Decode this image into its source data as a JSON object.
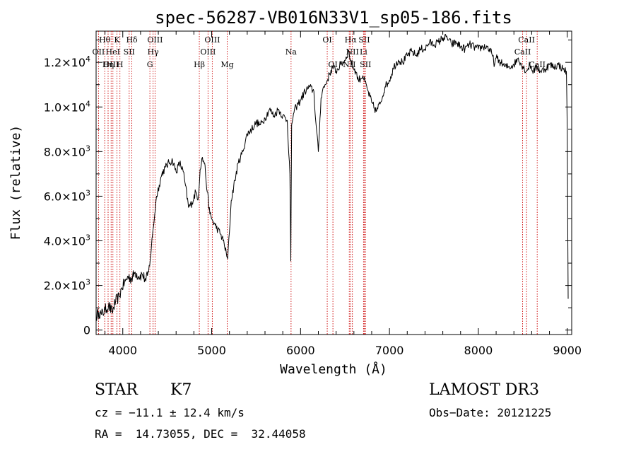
{
  "chart_data": {
    "type": "line",
    "title": "spec-56287-VB016N33V1_sp05-186.fits",
    "xlabel": "Wavelength (Å)",
    "ylabel": "Flux (relative)",
    "xlim": [
      3700,
      9050
    ],
    "ylim": [
      -200,
      13400
    ],
    "xticks": [
      {
        "value": 4000,
        "label": "4000"
      },
      {
        "value": 5000,
        "label": "5000"
      },
      {
        "value": 6000,
        "label": "6000"
      },
      {
        "value": 7000,
        "label": "7000"
      },
      {
        "value": 8000,
        "label": "8000"
      },
      {
        "value": 9000,
        "label": "9000"
      }
    ],
    "yticks": [
      {
        "value": 0,
        "mant": "0",
        "exp": ""
      },
      {
        "value": 2000,
        "mant": "2.0×10",
        "exp": "3"
      },
      {
        "value": 4000,
        "mant": "4.0×10",
        "exp": "3"
      },
      {
        "value": 6000,
        "mant": "6.0×10",
        "exp": "3"
      },
      {
        "value": 8000,
        "mant": "8.0×10",
        "exp": "3"
      },
      {
        "value": 10000,
        "mant": "1.0×10",
        "exp": "4"
      },
      {
        "value": 12000,
        "mant": "1.2×10",
        "exp": "4"
      }
    ],
    "series": [
      {
        "name": "spectrum",
        "color": "#000000",
        "x": [
          3700,
          3730,
          3760,
          3800,
          3840,
          3880,
          3920,
          3960,
          3990,
          4030,
          4060,
          4100,
          4140,
          4180,
          4220,
          4260,
          4290,
          4310,
          4340,
          4360,
          4380,
          4410,
          4440,
          4480,
          4520,
          4560,
          4600,
          4640,
          4680,
          4700,
          4740,
          4780,
          4820,
          4850,
          4870,
          4890,
          4920,
          4950,
          4980,
          5010,
          5040,
          5070,
          5100,
          5140,
          5170,
          5180,
          5200,
          5220,
          5260,
          5300,
          5350,
          5400,
          5450,
          5500,
          5550,
          5600,
          5650,
          5700,
          5750,
          5800,
          5850,
          5880,
          5890,
          5900,
          5920,
          5950,
          6000,
          6050,
          6100,
          6150,
          6170,
          6200,
          6230,
          6250,
          6280,
          6300,
          6330,
          6360,
          6400,
          6450,
          6500,
          6540,
          6563,
          6590,
          6620,
          6650,
          6700,
          6750,
          6800,
          6850,
          6900,
          6950,
          7000,
          7050,
          7100,
          7150,
          7200,
          7250,
          7300,
          7350,
          7400,
          7450,
          7500,
          7550,
          7600,
          7650,
          7700,
          7750,
          7800,
          7850,
          7900,
          7950,
          8000,
          8050,
          8100,
          8150,
          8183,
          8200,
          8250,
          8300,
          8350,
          8400,
          8450,
          8500,
          8542,
          8580,
          8620,
          8662,
          8700,
          8750,
          8800,
          8850,
          8900,
          8950,
          8990,
          9000,
          9010
        ],
        "y": [
          600,
          800,
          700,
          900,
          1100,
          800,
          1300,
          1500,
          1900,
          2200,
          2400,
          2300,
          2600,
          2400,
          2500,
          2200,
          2600,
          3200,
          4500,
          5200,
          6000,
          6500,
          7000,
          7300,
          7500,
          7600,
          7100,
          7500,
          7100,
          6600,
          5500,
          5700,
          6200,
          5900,
          7200,
          7700,
          7500,
          6200,
          5200,
          4900,
          4700,
          4500,
          4300,
          3900,
          3300,
          3200,
          4400,
          5800,
          6700,
          7500,
          8000,
          8800,
          9000,
          9300,
          9200,
          9500,
          9900,
          9600,
          9900,
          9600,
          9400,
          7000,
          3100,
          9200,
          9700,
          10000,
          10300,
          10700,
          10900,
          10700,
          9400,
          8000,
          10400,
          10800,
          11000,
          11200,
          11500,
          11800,
          11600,
          11900,
          12100,
          12500,
          12100,
          11800,
          11600,
          11200,
          11400,
          10800,
          10200,
          9800,
          10200,
          10900,
          11200,
          11800,
          12100,
          12000,
          12300,
          12500,
          12300,
          12600,
          12600,
          12900,
          12800,
          12900,
          13100,
          13100,
          12800,
          12900,
          12700,
          12600,
          12800,
          12700,
          12600,
          12700,
          12700,
          12400,
          11900,
          12200,
          12000,
          11800,
          11800,
          11900,
          12200,
          11800,
          11600,
          11900,
          11600,
          11800,
          11600,
          11700,
          11900,
          11800,
          11900,
          11700,
          11600,
          9000,
          1400
        ]
      }
    ],
    "line_markers": [
      {
        "name": "Hθ",
        "wave": 3797,
        "row": 0
      },
      {
        "name": "OII",
        "wave": 3727,
        "row": 1
      },
      {
        "name": "OIII",
        "wave": 3869,
        "row": 2
      },
      {
        "name": "K",
        "wave": 3934,
        "row": 0
      },
      {
        "name": "HeI",
        "wave": 3889,
        "row": 1
      },
      {
        "name": "Hη",
        "wave": 3835,
        "row": 2
      },
      {
        "name": "SII",
        "wave": 4072,
        "row": 1
      },
      {
        "name": "H",
        "wave": 3968,
        "row": 2
      },
      {
        "name": "Hδ",
        "wave": 4102,
        "row": 0
      },
      {
        "name": "OIII",
        "wave": 4363,
        "row": 0
      },
      {
        "name": "Hγ",
        "wave": 4341,
        "row": 1
      },
      {
        "name": "G",
        "wave": 4305,
        "row": 2
      },
      {
        "name": "Hβ",
        "wave": 4861,
        "row": 2
      },
      {
        "name": "OIII",
        "wave": 5007,
        "row": 0
      },
      {
        "name": "OIII",
        "wave": 4959,
        "row": 1
      },
      {
        "name": "Mg",
        "wave": 5175,
        "row": 2
      },
      {
        "name": "Na",
        "wave": 5893,
        "row": 1
      },
      {
        "name": "OI",
        "wave": 6300,
        "row": 0
      },
      {
        "name": "OI",
        "wave": 6364,
        "row": 2
      },
      {
        "name": "Hα",
        "wave": 6563,
        "row": 0
      },
      {
        "name": "NII",
        "wave": 6583,
        "row": 1
      },
      {
        "name": "NII",
        "wave": 6548,
        "row": 2
      },
      {
        "name": "SII",
        "wave": 6717,
        "row": 0
      },
      {
        "name": "Li",
        "wave": 6708,
        "row": 1
      },
      {
        "name": "SII",
        "wave": 6731,
        "row": 2
      },
      {
        "name": "CaII",
        "wave": 8542,
        "row": 0
      },
      {
        "name": "CaII",
        "wave": 8498,
        "row": 1
      },
      {
        "name": "CaII",
        "wave": 8662,
        "row": 2
      }
    ]
  },
  "info": {
    "class": "STAR",
    "subclass": "K7",
    "survey": "LAMOST DR3",
    "redshift": "cz = −11.1 ± 12.4 km/s",
    "obs_date": "Obs−Date: 20121225",
    "coords": "RA =  14.73055, DEC =  32.44058"
  },
  "colors": {
    "line_marker": "#cc0000",
    "spectrum": "#000000",
    "axis": "#000000"
  }
}
